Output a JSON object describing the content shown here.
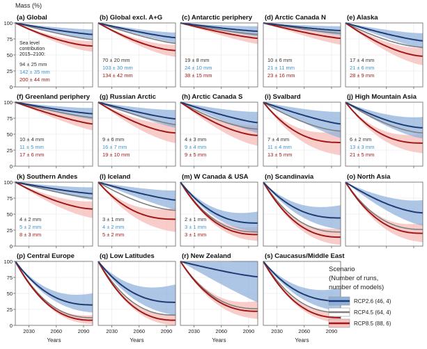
{
  "figure": {
    "ylabel": "Mass (%)",
    "xlabel": "Years",
    "yticks": [
      "0",
      "25",
      "50",
      "75",
      "100"
    ],
    "xticks": [
      "2030",
      "2060",
      "2090"
    ],
    "contribution_header": [
      "Sea level",
      "contribution",
      "2015–2100:"
    ]
  },
  "legend": {
    "title": [
      "Scenario",
      "(Number of runs,",
      "number of models)"
    ],
    "items": [
      {
        "label": "RCP2.6 (46, 4)",
        "color": "#1f3b73"
      },
      {
        "label": "RCP4.5 (64, 4)",
        "color": "#7f7f7f"
      },
      {
        "label": "RCP8.5 (88, 6)",
        "color": "#a01818"
      }
    ]
  },
  "colors": {
    "rcp26_line": "#1f3b73",
    "rcp45_line": "#7f7f7f",
    "rcp85_line": "#a01818",
    "rcp26_band": "#8fb0dc",
    "rcp85_band": "#f6c3c0",
    "rcp26_text": "#3a8fd0",
    "rcp85_text": "#a01818",
    "rcp45_text": "#333333"
  },
  "chart_data": {
    "type": "line",
    "x_range": [
      2015,
      2100
    ],
    "ylim": [
      0,
      100
    ],
    "panels": [
      {
        "title": "(a) Global",
        "end": [
          82,
          74,
          64
        ],
        "band26": [
          8,
          8
        ],
        "band85": [
          8,
          9
        ],
        "contrib": [
          "94 ± 25 mm",
          "142 ± 35 mm",
          "200 ± 44 mm"
        ]
      },
      {
        "title": "(b) Global excl. A+G",
        "end": [
          77,
          68,
          57
        ],
        "band26": [
          8,
          8
        ],
        "band85": [
          9,
          10
        ],
        "contrib": [
          "70 ± 20 mm",
          "103 ± 30 mm",
          "134 ± 42 mm"
        ]
      },
      {
        "title": "(c) Antarctic periphery",
        "end": [
          87,
          82,
          76
        ],
        "band26": [
          8,
          8
        ],
        "band85": [
          8,
          9
        ],
        "contrib": [
          "19 ± 8 mm",
          "24 ± 10 mm",
          "38 ± 15 mm"
        ]
      },
      {
        "title": "(d) Arctic Canada N",
        "end": [
          88,
          84,
          76
        ],
        "band26": [
          7,
          7
        ],
        "band85": [
          9,
          10
        ],
        "contrib": [
          "10 ± 6 mm",
          "21 ± 11 mm",
          "23 ± 16 mm"
        ]
      },
      {
        "title": "(e) Alaska",
        "end": [
          72,
          62,
          48
        ],
        "band26": [
          12,
          12
        ],
        "band85": [
          13,
          14
        ],
        "contrib": [
          "17 ± 4 mm",
          "21 ± 6 mm",
          "28 ± 9 mm"
        ]
      },
      {
        "title": "(f) Greenland periphery",
        "end": [
          82,
          76,
          66
        ],
        "band26": [
          9,
          9
        ],
        "band85": [
          10,
          10
        ],
        "contrib": [
          "10 ± 4 mm",
          "11 ± 5 mm",
          "17 ± 6 mm"
        ]
      },
      {
        "title": "(g) Russian Arctic",
        "end": [
          74,
          65,
          52
        ],
        "band26": [
          14,
          14
        ],
        "band85": [
          14,
          16
        ],
        "contrib": [
          "9 ± 6 mm",
          "16 ± 7 mm",
          "19 ± 10 mm"
        ]
      },
      {
        "title": "(h) Arctic Canada S",
        "end": [
          68,
          58,
          48
        ],
        "band26": [
          17,
          16
        ],
        "band85": [
          16,
          16
        ],
        "contrib": [
          "4 ± 3 mm",
          "9 ± 4 mm",
          "9 ± 5 mm"
        ]
      },
      {
        "title": "(i) Svalbard",
        "end": [
          66,
          55,
          37
        ],
        "band26": [
          19,
          22
        ],
        "band85": [
          18,
          20
        ],
        "contrib": [
          "7 ± 4 mm",
          "11 ± 4 mm",
          "13 ± 5 mm"
        ]
      },
      {
        "title": "(j) High Mountain Asia",
        "end": [
          60,
          52,
          36
        ],
        "band26": [
          17,
          17
        ],
        "band85": [
          14,
          16
        ],
        "contrib": [
          "6 ± 2 mm",
          "13 ± 3 mm",
          "21 ± 5 mm"
        ]
      },
      {
        "title": "(k) Southern Andes",
        "end": [
          82,
          75,
          58
        ],
        "band26": [
          10,
          10
        ],
        "band85": [
          12,
          14
        ],
        "contrib": [
          "4 ± 2 mm",
          "5 ± 2 mm",
          "8 ± 3 mm"
        ]
      },
      {
        "title": "(l) Iceland",
        "end": [
          72,
          56,
          42
        ],
        "band26": [
          15,
          15
        ],
        "band85": [
          18,
          20
        ],
        "contrib": [
          "3 ± 1 mm",
          "4 ± 2 mm",
          "5 ± 2 mm"
        ]
      },
      {
        "title": "(m) W Canada & USA",
        "end": [
          36,
          22,
          18
        ],
        "band26": [
          18,
          14
        ],
        "band85": [
          12,
          10
        ],
        "contrib": [
          "2 ± 1 mm",
          "3 ± 1 mm",
          "3 ± 1 mm"
        ]
      },
      {
        "title": "(n) Scandinavia",
        "end": [
          44,
          22,
          14
        ],
        "band26": [
          20,
          18
        ],
        "band85": [
          14,
          12
        ],
        "contrib": []
      },
      {
        "title": "(o) North Asia",
        "end": [
          52,
          26,
          20
        ],
        "band26": [
          20,
          20
        ],
        "band85": [
          16,
          14
        ],
        "contrib": []
      },
      {
        "title": "(p) Central Europe",
        "end": [
          32,
          12,
          8
        ],
        "band26": [
          18,
          12
        ],
        "band85": [
          8,
          6
        ],
        "contrib": []
      },
      {
        "title": "(q) Low Latitudes",
        "end": [
          36,
          16,
          8
        ],
        "band26": [
          28,
          20
        ],
        "band85": [
          10,
          8
        ],
        "contrib": []
      },
      {
        "title": "(r) New Zealand",
        "end": [
          76,
          26,
          22
        ],
        "band26": [
          26,
          40
        ],
        "band85": [
          16,
          12
        ],
        "contrib": []
      },
      {
        "title": "(s) Caucasus/Middle East",
        "end": [
          38,
          20,
          12
        ],
        "band26": [
          20,
          16
        ],
        "band85": [
          10,
          8
        ],
        "contrib": []
      }
    ]
  }
}
